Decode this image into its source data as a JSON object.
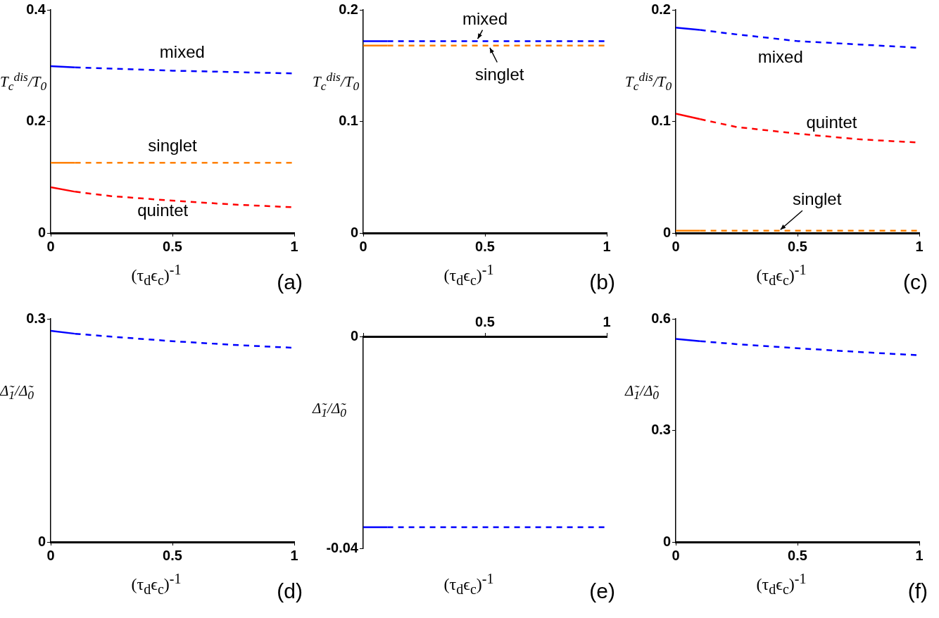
{
  "chart_data": [
    {
      "type": "line",
      "ylabel": "T$_{c}$$^{dis}$/T$_{0}$",
      "xlabel": "(τ$_{d}$ϵ$_{c}$)$^{-1}$",
      "xlim": [
        0,
        1
      ],
      "xticks": [
        0,
        0.5,
        1
      ],
      "ylim": [
        0,
        0.4
      ],
      "yticks": [
        0,
        0.2,
        0.4
      ],
      "series": [
        {
          "color": "#0000ff",
          "line_style": "solid",
          "x": [
            0,
            0.1
          ],
          "values": [
            0.299,
            0.297
          ]
        },
        {
          "color": "#0000ff",
          "line_style": "dashed",
          "x": [
            0.1,
            0.5,
            1
          ],
          "values": [
            0.297,
            0.291,
            0.286
          ]
        },
        {
          "color": "#ff8000",
          "line_style": "solid",
          "x": [
            0,
            0.1
          ],
          "values": [
            0.126,
            0.126
          ]
        },
        {
          "color": "#ff8000",
          "line_style": "dashed",
          "x": [
            0.1,
            0.5,
            1
          ],
          "values": [
            0.126,
            0.126,
            0.126
          ]
        },
        {
          "color": "#ff0000",
          "line_style": "solid",
          "x": [
            0,
            0.1
          ],
          "values": [
            0.082,
            0.074
          ]
        },
        {
          "color": "#ff0000",
          "line_style": "dashed",
          "x": [
            0.1,
            0.25,
            0.5,
            0.75,
            1
          ],
          "values": [
            0.074,
            0.066,
            0.058,
            0.051,
            0.046
          ]
        }
      ],
      "annotations": [
        "(a)",
        "mixed",
        "singlet",
        "quintet"
      ]
    },
    {
      "type": "line",
      "ylabel": "T$_{c}$$^{dis}$/T$_{0}$",
      "xlabel": "(τ$_{d}$ϵ$_{c}$)$^{-1}$",
      "xlim": [
        0,
        1
      ],
      "xticks": [
        0,
        0.5,
        1
      ],
      "ylim": [
        0,
        0.2
      ],
      "yticks": [
        0,
        0.1,
        0.2
      ],
      "series": [
        {
          "color": "#0000ff",
          "line_style": "solid",
          "x": [
            0,
            0.1
          ],
          "values": [
            0.172,
            0.172
          ]
        },
        {
          "color": "#0000ff",
          "line_style": "dashed",
          "x": [
            0.1,
            0.5,
            1
          ],
          "values": [
            0.172,
            0.172,
            0.172
          ]
        },
        {
          "color": "#ff8000",
          "line_style": "solid",
          "x": [
            0,
            0.1
          ],
          "values": [
            0.168,
            0.168
          ]
        },
        {
          "color": "#ff8000",
          "line_style": "dashed",
          "x": [
            0.1,
            0.5,
            1
          ],
          "values": [
            0.168,
            0.168,
            0.168
          ]
        }
      ],
      "annotations": [
        "(b)",
        "mixed",
        "singlet"
      ]
    },
    {
      "type": "line",
      "ylabel": "T$_{c}$$^{dis}$/T$_{0}$",
      "xlabel": "(τ$_{d}$ϵ$_{c}$)$^{-1}$",
      "xlim": [
        0,
        1
      ],
      "xticks": [
        0,
        0.5,
        1
      ],
      "ylim": [
        0,
        0.2
      ],
      "yticks": [
        0,
        0.1,
        0.2
      ],
      "series": [
        {
          "color": "#0000ff",
          "line_style": "solid",
          "x": [
            0,
            0.1
          ],
          "values": [
            0.184,
            0.182
          ]
        },
        {
          "color": "#0000ff",
          "line_style": "dashed",
          "x": [
            0.1,
            0.25,
            0.5,
            0.75,
            1
          ],
          "values": [
            0.182,
            0.178,
            0.172,
            0.169,
            0.166
          ]
        },
        {
          "color": "#ff0000",
          "line_style": "solid",
          "x": [
            0,
            0.1
          ],
          "values": [
            0.107,
            0.102
          ]
        },
        {
          "color": "#ff0000",
          "line_style": "dashed",
          "x": [
            0.1,
            0.25,
            0.5,
            0.75,
            1
          ],
          "values": [
            0.102,
            0.095,
            0.089,
            0.084,
            0.081
          ]
        },
        {
          "color": "#ff8000",
          "line_style": "solid",
          "x": [
            0,
            0.1
          ],
          "values": [
            0.002,
            0.002
          ]
        },
        {
          "color": "#ff8000",
          "line_style": "dashed",
          "x": [
            0.1,
            0.5,
            1
          ],
          "values": [
            0.002,
            0.002,
            0.002
          ]
        }
      ],
      "annotations": [
        "(c)",
        "mixed",
        "quintet",
        "singlet"
      ]
    },
    {
      "type": "line",
      "ylabel": "Δ̃$_{1}$/Δ̃$_{0}$",
      "xlabel": "(τ$_{d}$ϵ$_{c}$)$^{-1}$",
      "xlim": [
        0,
        1
      ],
      "xticks": [
        0,
        0.5,
        1
      ],
      "ylim": [
        0,
        0.3
      ],
      "yticks": [
        0,
        0.3
      ],
      "series": [
        {
          "color": "#0000ff",
          "line_style": "solid",
          "x": [
            0,
            0.1
          ],
          "values": [
            0.284,
            0.28
          ]
        },
        {
          "color": "#0000ff",
          "line_style": "dashed",
          "x": [
            0.1,
            0.25,
            0.5,
            0.75,
            1
          ],
          "values": [
            0.28,
            0.276,
            0.27,
            0.265,
            0.261
          ]
        }
      ],
      "annotations": [
        "(d)"
      ]
    },
    {
      "type": "line",
      "ylabel": "Δ̃$_{1}$/Δ̃$_{0}$",
      "xlabel": "(τ$_{d}$ϵ$_{c}$)$^{-1}$",
      "xlim": [
        0,
        1
      ],
      "xticks": [
        {
          "value": 0,
          "label": null
        },
        0.5,
        1
      ],
      "ylim": [
        -0.04,
        0
      ],
      "yticks": [
        -0.04,
        0
      ],
      "series": [
        {
          "color": "#0000ff",
          "line_style": "solid",
          "x": [
            0,
            0.1
          ],
          "values": [
            -0.036,
            -0.036
          ]
        },
        {
          "color": "#0000ff",
          "line_style": "dashed",
          "x": [
            0.1,
            0.5,
            1
          ],
          "values": [
            -0.036,
            -0.036,
            -0.036
          ]
        }
      ],
      "annotations": [
        "(e)"
      ]
    },
    {
      "type": "line",
      "ylabel": "Δ̃$_{1}$/Δ̃$_{0}$",
      "xlabel": "(τ$_{d}$ϵ$_{c}$)$^{-1}$",
      "xlim": [
        0,
        1
      ],
      "xticks": [
        0,
        0.5,
        1
      ],
      "ylim": [
        0,
        0.6
      ],
      "yticks": [
        0,
        0.3,
        0.6
      ],
      "series": [
        {
          "color": "#0000ff",
          "line_style": "solid",
          "x": [
            0,
            0.1
          ],
          "values": [
            0.546,
            0.54
          ]
        },
        {
          "color": "#0000ff",
          "line_style": "dashed",
          "x": [
            0.1,
            0.25,
            0.5,
            0.75,
            1
          ],
          "values": [
            0.54,
            0.532,
            0.521,
            0.511,
            0.502
          ]
        }
      ],
      "annotations": [
        "(f)"
      ]
    }
  ]
}
